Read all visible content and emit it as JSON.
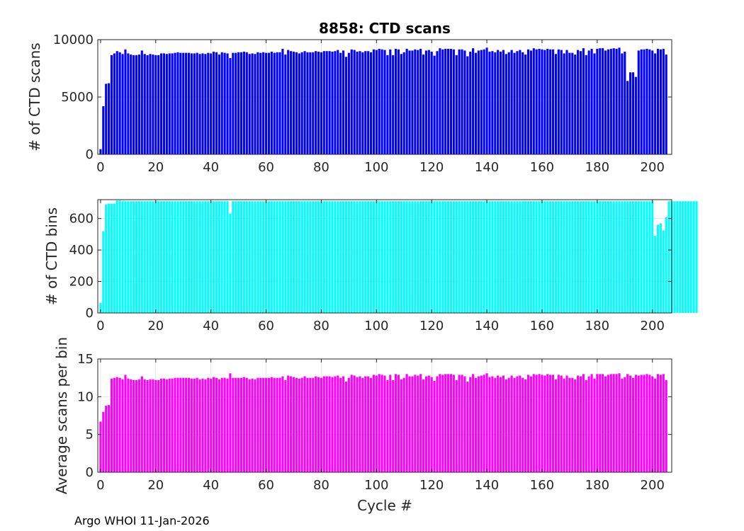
{
  "figure": {
    "footer": "Argo WHOI 11-Jan-2026"
  },
  "chart_data": [
    {
      "type": "bar",
      "title": "8858: CTD scans",
      "xlabel": "",
      "ylabel": "# of CTD scans",
      "xlim": [
        -1,
        207
      ],
      "ylim": [
        0,
        10000
      ],
      "xticks": [
        0,
        20,
        40,
        60,
        80,
        100,
        120,
        140,
        160,
        180,
        200
      ],
      "yticks": [
        0,
        5000,
        10000
      ],
      "grid": true,
      "color": "#0000ff",
      "x_start": 0,
      "values": [
        450,
        4200,
        6150,
        6200,
        8650,
        8800,
        9000,
        8900,
        8750,
        9150,
        8800,
        8700,
        8650,
        8650,
        8700,
        9050,
        8750,
        8650,
        8750,
        8700,
        8650,
        8650,
        8800,
        8800,
        8750,
        8800,
        8800,
        8850,
        8900,
        8850,
        8850,
        8850,
        8850,
        8800,
        8800,
        8850,
        8750,
        8800,
        8750,
        8850,
        8800,
        8950,
        8900,
        8700,
        8900,
        8850,
        8800,
        8400,
        8850,
        8850,
        8900,
        8900,
        8950,
        8900,
        8750,
        8800,
        8750,
        8900,
        8850,
        8900,
        8850,
        8850,
        8950,
        8850,
        8900,
        8900,
        9200,
        8700,
        9100,
        9000,
        8950,
        8900,
        8800,
        8900,
        9000,
        8900,
        8900,
        8900,
        9000,
        8950,
        8900,
        9000,
        9000,
        9000,
        8950,
        9000,
        9100,
        8850,
        9050,
        8500,
        8850,
        9150,
        9100,
        8950,
        9000,
        8900,
        9000,
        9000,
        8900,
        9150,
        9100,
        9200,
        9150,
        9100,
        8650,
        9150,
        8650,
        9200,
        9150,
        8750,
        8900,
        9200,
        9050,
        9050,
        9150,
        9100,
        9200,
        8700,
        9050,
        9100,
        8950,
        8600,
        9000,
        9250,
        9150,
        9200,
        9200,
        9200,
        9150,
        8650,
        9150,
        9150,
        9050,
        8550,
        8950,
        9250,
        8850,
        9050,
        9100,
        9150,
        9300,
        8950,
        9000,
        8900,
        9100,
        8950,
        9100,
        8750,
        8900,
        9100,
        8850,
        9000,
        9100,
        8900,
        8700,
        9150,
        9050,
        9250,
        9150,
        9200,
        9150,
        9100,
        9200,
        9150,
        9150,
        8750,
        9150,
        9100,
        8800,
        9100,
        8850,
        8850,
        8700,
        9100,
        9000,
        9250,
        8650,
        9050,
        9200,
        8800,
        9200,
        9250,
        9250,
        9050,
        9150,
        9200,
        9250,
        9200,
        9300,
        8800,
        8950,
        6400,
        7150,
        7150,
        6750,
        9050,
        9150,
        9150,
        9200,
        9150,
        9050,
        8800,
        9200,
        9150,
        9200,
        8700
      ]
    },
    {
      "type": "bar",
      "title": "",
      "xlabel": "",
      "ylabel": "# of CTD bins",
      "xlim": [
        -1,
        207
      ],
      "ylim": [
        0,
        720
      ],
      "xticks": [
        0,
        20,
        40,
        60,
        80,
        100,
        120,
        140,
        160,
        180,
        200
      ],
      "yticks": [
        0,
        200,
        400,
        600
      ],
      "grid": true,
      "color": "#00ffff",
      "x_start": 0,
      "values": [
        65,
        520,
        690,
        695,
        695,
        695,
        715,
        715,
        710,
        710,
        710,
        710,
        710,
        710,
        710,
        710,
        710,
        710,
        710,
        710,
        710,
        710,
        710,
        710,
        710,
        710,
        710,
        710,
        710,
        710,
        710,
        710,
        710,
        710,
        710,
        710,
        710,
        710,
        710,
        710,
        710,
        710,
        710,
        710,
        710,
        710,
        710,
        630,
        710,
        710,
        710,
        710,
        710,
        710,
        710,
        710,
        710,
        710,
        710,
        710,
        710,
        710,
        710,
        710,
        710,
        710,
        710,
        710,
        710,
        710,
        710,
        710,
        710,
        710,
        710,
        710,
        710,
        710,
        710,
        710,
        710,
        710,
        710,
        710,
        710,
        710,
        710,
        710,
        710,
        710,
        710,
        710,
        710,
        710,
        710,
        710,
        710,
        710,
        710,
        710,
        710,
        710,
        710,
        710,
        710,
        710,
        710,
        710,
        710,
        710,
        710,
        710,
        710,
        710,
        710,
        710,
        710,
        710,
        710,
        710,
        710,
        710,
        710,
        710,
        710,
        710,
        710,
        710,
        710,
        710,
        710,
        710,
        710,
        710,
        710,
        710,
        710,
        710,
        710,
        710,
        710,
        710,
        710,
        710,
        710,
        710,
        710,
        710,
        710,
        710,
        710,
        710,
        710,
        710,
        710,
        710,
        710,
        710,
        710,
        710,
        710,
        710,
        710,
        710,
        710,
        710,
        710,
        710,
        710,
        710,
        710,
        710,
        710,
        710,
        710,
        710,
        710,
        710,
        710,
        710,
        710,
        710,
        710,
        710,
        710,
        710,
        710,
        710,
        710,
        710,
        710,
        710,
        710,
        710,
        710,
        710,
        710,
        710,
        710,
        710,
        710,
        490,
        560,
        570,
        525,
        610,
        710,
        710,
        710,
        710,
        710,
        710,
        710,
        710,
        710,
        710,
        710
      ]
    },
    {
      "type": "bar",
      "title": "",
      "xlabel": "Cycle #",
      "ylabel": "Average scans per bin",
      "xlim": [
        -1,
        207
      ],
      "ylim": [
        0,
        15
      ],
      "xticks": [
        0,
        20,
        40,
        60,
        80,
        100,
        120,
        140,
        160,
        180,
        200
      ],
      "yticks": [
        0,
        5,
        10,
        15
      ],
      "grid": true,
      "color": "#ff00ff",
      "x_start": 0,
      "values": [
        6.7,
        8.0,
        8.8,
        8.9,
        12.4,
        12.5,
        12.6,
        12.5,
        12.3,
        12.9,
        12.4,
        12.3,
        12.2,
        12.2,
        12.3,
        12.7,
        12.3,
        12.2,
        12.3,
        12.3,
        12.2,
        12.2,
        12.4,
        12.4,
        12.3,
        12.4,
        12.4,
        12.5,
        12.5,
        12.5,
        12.5,
        12.5,
        12.5,
        12.4,
        12.4,
        12.5,
        12.3,
        12.4,
        12.3,
        12.5,
        12.4,
        12.6,
        12.5,
        12.3,
        12.5,
        12.5,
        12.4,
        13.1,
        12.5,
        12.5,
        12.5,
        12.5,
        12.6,
        12.5,
        12.3,
        12.4,
        12.3,
        12.5,
        12.5,
        12.5,
        12.5,
        12.5,
        12.6,
        12.5,
        12.5,
        12.5,
        12.7,
        12.2,
        12.8,
        12.7,
        12.6,
        12.5,
        12.4,
        12.5,
        12.7,
        12.5,
        12.5,
        12.5,
        12.7,
        12.6,
        12.5,
        12.7,
        12.7,
        12.7,
        12.6,
        12.7,
        12.8,
        12.5,
        12.7,
        12.0,
        12.5,
        12.9,
        12.8,
        12.6,
        12.7,
        12.5,
        12.7,
        12.7,
        12.5,
        12.9,
        12.8,
        13.0,
        12.9,
        12.8,
        12.2,
        12.9,
        12.2,
        13.0,
        12.9,
        12.3,
        12.5,
        13.0,
        12.7,
        12.7,
        12.9,
        12.8,
        13.0,
        12.3,
        12.7,
        12.8,
        12.6,
        12.1,
        12.7,
        13.0,
        12.9,
        13.0,
        13.0,
        13.0,
        12.9,
        12.2,
        12.9,
        12.9,
        12.7,
        12.0,
        12.6,
        13.0,
        12.5,
        12.7,
        12.8,
        12.9,
        13.1,
        12.6,
        12.7,
        12.5,
        12.8,
        12.6,
        12.8,
        12.3,
        12.5,
        12.8,
        12.5,
        12.7,
        12.8,
        12.5,
        12.3,
        12.9,
        12.7,
        13.0,
        12.9,
        13.0,
        12.9,
        12.8,
        13.0,
        12.9,
        12.9,
        12.3,
        12.9,
        12.8,
        12.4,
        12.8,
        12.5,
        12.5,
        12.3,
        12.8,
        12.7,
        13.0,
        12.2,
        12.7,
        13.0,
        12.4,
        13.0,
        13.0,
        13.0,
        12.7,
        12.9,
        13.0,
        13.0,
        13.0,
        13.1,
        12.4,
        12.6,
        13.0,
        12.8,
        12.5,
        12.9,
        12.8,
        12.9,
        12.9,
        13.0,
        12.9,
        12.7,
        12.4,
        13.0,
        12.9,
        13.0,
        12.2
      ]
    }
  ]
}
